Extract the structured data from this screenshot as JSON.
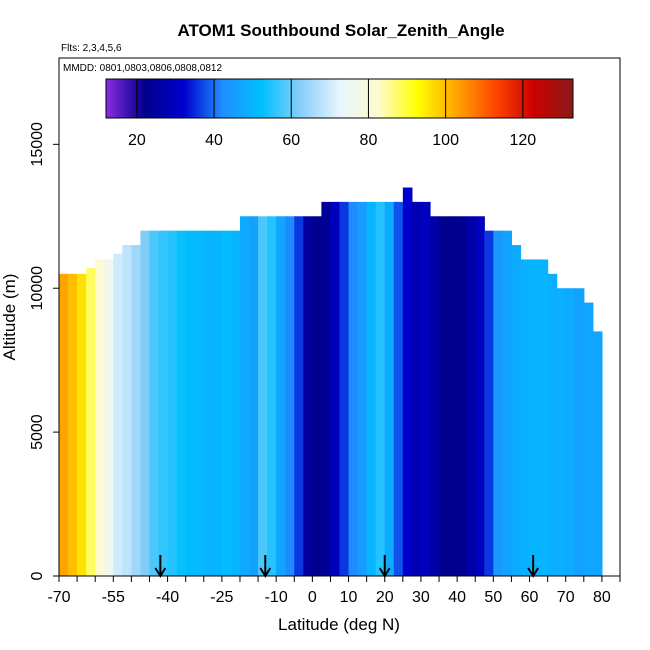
{
  "chart_data": {
    "type": "heatmap",
    "title": "ATOM1 Southbound Solar_Zenith_Angle",
    "flights_label": "Flts: 2,3,4,5,6",
    "dates_label": "MMDD: 0801,0803,0806,0808,0812",
    "xlabel": "Latitude (deg N)",
    "ylabel": "Altitude (m)",
    "xlim": [
      -70,
      85
    ],
    "ylim": [
      0,
      18000
    ],
    "xticks": [
      -70,
      -55,
      -40,
      -25,
      -10,
      0,
      10,
      20,
      30,
      40,
      50,
      60,
      70,
      80
    ],
    "xtick_labels": [
      "-70",
      "-55",
      "-40",
      "-25",
      "-10",
      "0",
      "10",
      "20",
      "30",
      "40",
      "50",
      "60",
      "70",
      "80"
    ],
    "yticks": [
      0,
      5000,
      10000,
      15000
    ],
    "ytick_labels": [
      "0",
      "5000",
      "10000",
      "15000"
    ],
    "colorbar": {
      "range": [
        12,
        133
      ],
      "ticks": [
        20,
        40,
        60,
        80,
        100,
        120
      ],
      "tick_labels": [
        "20",
        "40",
        "60",
        "80",
        "100",
        "120"
      ],
      "colors": [
        "#8a2be2",
        "#00008b",
        "#0000cd",
        "#1e90ff",
        "#00bfff",
        "#87cefa",
        "#e6f5ff",
        "#fffacd",
        "#ffff00",
        "#ffa500",
        "#ff4500",
        "#cc0000",
        "#8b1a1a"
      ]
    },
    "column_width_deg": 2.5,
    "columns": [
      {
        "lat": -68.75,
        "top": 10500,
        "value": 103
      },
      {
        "lat": -66.25,
        "top": 10500,
        "value": 100
      },
      {
        "lat": -63.75,
        "top": 10500,
        "value": 96
      },
      {
        "lat": -61.25,
        "top": 10700,
        "value": 88
      },
      {
        "lat": -58.75,
        "top": 11000,
        "value": 82
      },
      {
        "lat": -56.25,
        "top": 11000,
        "value": 76
      },
      {
        "lat": -53.75,
        "top": 11200,
        "value": 70
      },
      {
        "lat": -51.25,
        "top": 11500,
        "value": 68
      },
      {
        "lat": -48.75,
        "top": 11500,
        "value": 65
      },
      {
        "lat": -46.25,
        "top": 12000,
        "value": 62
      },
      {
        "lat": -43.75,
        "top": 12000,
        "value": 58
      },
      {
        "lat": -41.25,
        "top": 12000,
        "value": 56
      },
      {
        "lat": -38.75,
        "top": 12000,
        "value": 55
      },
      {
        "lat": -36.25,
        "top": 12000,
        "value": 53
      },
      {
        "lat": -33.75,
        "top": 12000,
        "value": 52
      },
      {
        "lat": -31.25,
        "top": 12000,
        "value": 51
      },
      {
        "lat": -28.75,
        "top": 12000,
        "value": 50
      },
      {
        "lat": -26.25,
        "top": 12000,
        "value": 50
      },
      {
        "lat": -23.75,
        "top": 12000,
        "value": 52
      },
      {
        "lat": -21.25,
        "top": 12000,
        "value": 50
      },
      {
        "lat": -18.75,
        "top": 12500,
        "value": 48
      },
      {
        "lat": -16.25,
        "top": 12500,
        "value": 46
      },
      {
        "lat": -13.75,
        "top": 12500,
        "value": 58
      },
      {
        "lat": -11.25,
        "top": 12500,
        "value": 55
      },
      {
        "lat": -8.75,
        "top": 12500,
        "value": 47
      },
      {
        "lat": -6.25,
        "top": 12500,
        "value": 42
      },
      {
        "lat": -3.75,
        "top": 12500,
        "value": 36
      },
      {
        "lat": -1.25,
        "top": 12500,
        "value": 25
      },
      {
        "lat": 1.25,
        "top": 12500,
        "value": 22
      },
      {
        "lat": 3.75,
        "top": 13000,
        "value": 24
      },
      {
        "lat": 6.25,
        "top": 13000,
        "value": 30
      },
      {
        "lat": 8.75,
        "top": 13000,
        "value": 36
      },
      {
        "lat": 11.25,
        "top": 13000,
        "value": 42
      },
      {
        "lat": 13.75,
        "top": 13000,
        "value": 45
      },
      {
        "lat": 16.25,
        "top": 13000,
        "value": 50
      },
      {
        "lat": 18.75,
        "top": 13000,
        "value": 55
      },
      {
        "lat": 21.25,
        "top": 13000,
        "value": 48
      },
      {
        "lat": 23.75,
        "top": 13000,
        "value": 38
      },
      {
        "lat": 26.25,
        "top": 13500,
        "value": 32
      },
      {
        "lat": 28.75,
        "top": 13000,
        "value": 28
      },
      {
        "lat": 31.25,
        "top": 13000,
        "value": 30
      },
      {
        "lat": 33.75,
        "top": 12500,
        "value": 27
      },
      {
        "lat": 36.25,
        "top": 12500,
        "value": 22
      },
      {
        "lat": 38.75,
        "top": 12500,
        "value": 22
      },
      {
        "lat": 41.25,
        "top": 12500,
        "value": 23
      },
      {
        "lat": 43.75,
        "top": 12500,
        "value": 26
      },
      {
        "lat": 46.25,
        "top": 12500,
        "value": 30
      },
      {
        "lat": 48.75,
        "top": 12000,
        "value": 36
      },
      {
        "lat": 51.25,
        "top": 12000,
        "value": 44
      },
      {
        "lat": 53.75,
        "top": 12000,
        "value": 46
      },
      {
        "lat": 56.25,
        "top": 11500,
        "value": 48
      },
      {
        "lat": 58.75,
        "top": 11000,
        "value": 49
      },
      {
        "lat": 61.25,
        "top": 11000,
        "value": 50
      },
      {
        "lat": 63.75,
        "top": 11000,
        "value": 50
      },
      {
        "lat": 66.25,
        "top": 10500,
        "value": 49
      },
      {
        "lat": 68.75,
        "top": 10000,
        "value": 49
      },
      {
        "lat": 71.25,
        "top": 10000,
        "value": 48
      },
      {
        "lat": 73.75,
        "top": 10000,
        "value": 46
      },
      {
        "lat": 76.25,
        "top": 9500,
        "value": 47
      },
      {
        "lat": 78.75,
        "top": 8500,
        "value": 47
      }
    ],
    "arrow_latitudes": [
      -42,
      -13,
      20,
      61
    ]
  }
}
